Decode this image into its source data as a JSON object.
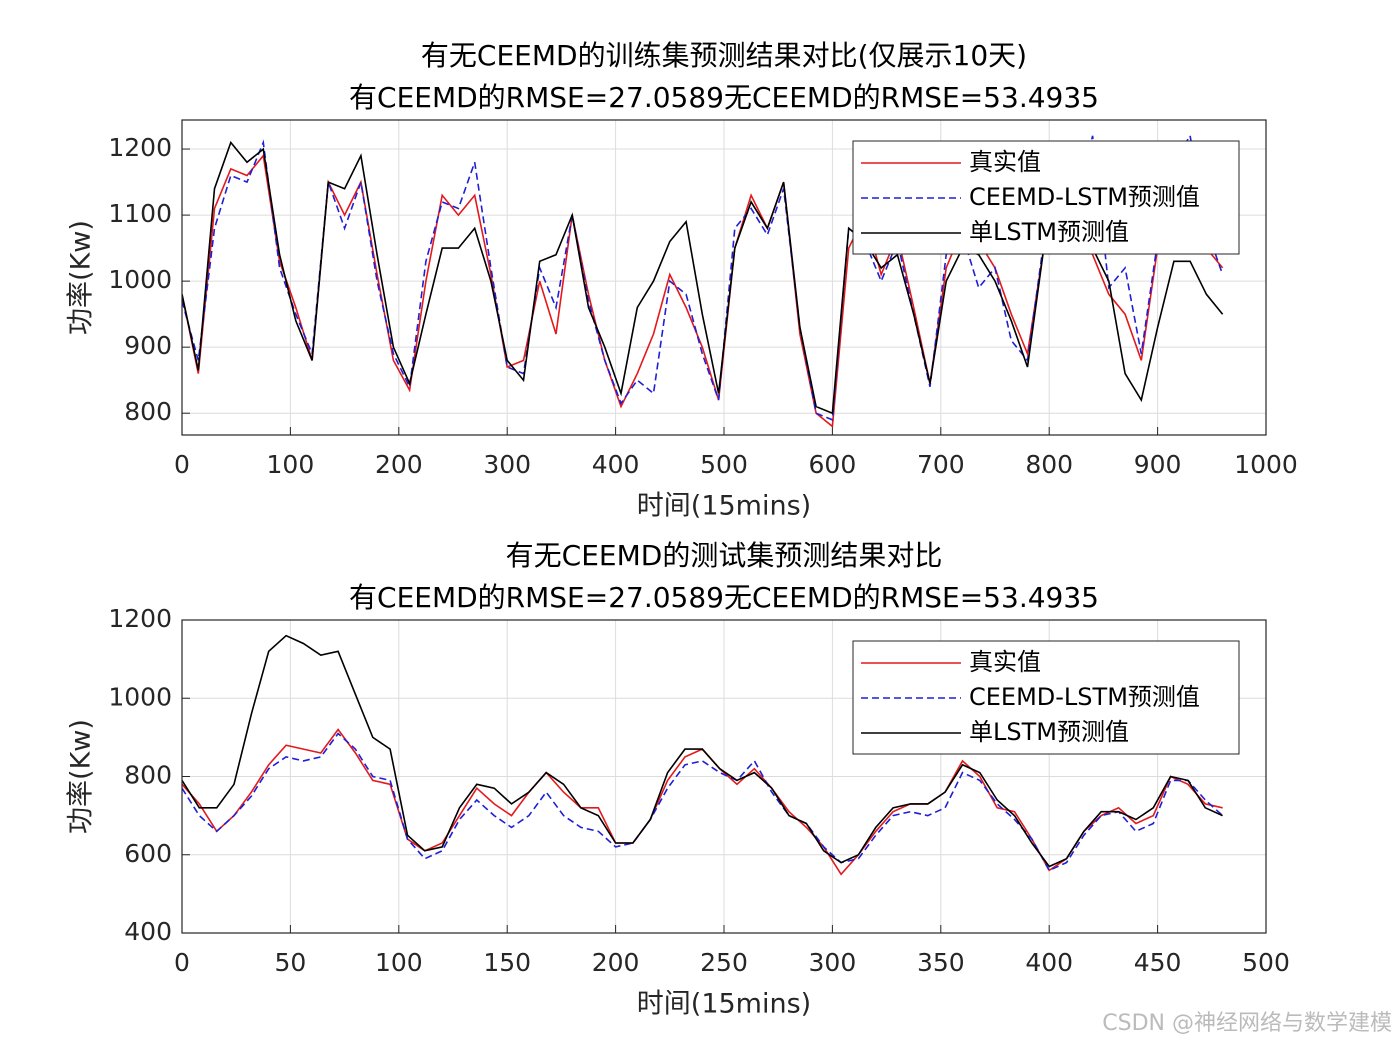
{
  "chart_data": [
    {
      "type": "line",
      "title": "有无CEEMD的训练集预测结果对比(仅展示10天)",
      "subtitle": "有CEEMD的RMSE=27.0589无CEEMD的RMSE=53.4935",
      "xlabel": "时间(15mins)",
      "ylabel": "功率(Kw)",
      "x": [
        0,
        15,
        30,
        45,
        60,
        75,
        90,
        105,
        120,
        135,
        150,
        165,
        180,
        195,
        210,
        225,
        240,
        255,
        270,
        285,
        300,
        315,
        330,
        345,
        360,
        375,
        390,
        405,
        420,
        435,
        450,
        465,
        480,
        495,
        510,
        525,
        540,
        555,
        570,
        585,
        600,
        615,
        630,
        645,
        660,
        675,
        690,
        705,
        720,
        735,
        750,
        765,
        780,
        795,
        810,
        825,
        840,
        855,
        870,
        885,
        900,
        915,
        930,
        945,
        960
      ],
      "series": [
        {
          "name": "真实值",
          "color": "#e31a1c",
          "dash": "solid",
          "values": [
            980,
            860,
            1110,
            1170,
            1160,
            1190,
            1030,
            960,
            880,
            1150,
            1100,
            1150,
            1010,
            880,
            835,
            1000,
            1130,
            1100,
            1130,
            1010,
            870,
            880,
            1000,
            920,
            1100,
            980,
            880,
            810,
            860,
            920,
            1010,
            960,
            900,
            820,
            1050,
            1130,
            1080,
            1150,
            920,
            800,
            780,
            1050,
            1100,
            1010,
            1070,
            960,
            845,
            1020,
            1080,
            1060,
            1020,
            950,
            890,
            1050,
            1100,
            1090,
            1040,
            980,
            950,
            880,
            1050,
            1080,
            1100,
            1050,
            1020
          ]
        },
        {
          "name": "CEEMD-LSTM预测值",
          "color": "#1f1fd6",
          "dash": "dashed",
          "values": [
            970,
            880,
            1080,
            1160,
            1150,
            1210,
            1020,
            950,
            890,
            1150,
            1080,
            1150,
            1000,
            890,
            840,
            1030,
            1120,
            1110,
            1180,
            1020,
            870,
            860,
            1020,
            960,
            1100,
            970,
            880,
            815,
            850,
            830,
            1000,
            980,
            890,
            820,
            1080,
            1110,
            1070,
            1140,
            930,
            800,
            790,
            1080,
            1060,
            1000,
            1060,
            950,
            840,
            1040,
            1070,
            990,
            1020,
            910,
            880,
            1060,
            1120,
            1110,
            1220,
            990,
            1020,
            890,
            1060,
            1180,
            1220,
            1080,
            1010
          ]
        },
        {
          "name": "单LSTM预测值",
          "color": "#000000",
          "dash": "solid",
          "values": [
            980,
            865,
            1140,
            1210,
            1180,
            1200,
            1040,
            940,
            880,
            1150,
            1140,
            1190,
            1040,
            900,
            845,
            950,
            1050,
            1050,
            1080,
            1000,
            880,
            850,
            1030,
            1040,
            1100,
            960,
            900,
            830,
            960,
            1000,
            1060,
            1090,
            950,
            830,
            1050,
            1120,
            1080,
            1150,
            930,
            810,
            800,
            1080,
            1060,
            1020,
            1040,
            950,
            845,
            1000,
            1050,
            1040,
            1000,
            940,
            870,
            1050,
            1110,
            1100,
            1050,
            1000,
            860,
            820,
            930,
            1030,
            1030,
            980,
            950
          ]
        }
      ],
      "xlim": [
        0,
        1000
      ],
      "ylim": [
        767,
        1244
      ],
      "xticks": [
        0,
        100,
        200,
        300,
        400,
        500,
        600,
        700,
        800,
        900,
        1000
      ],
      "yticks": [
        800,
        900,
        1000,
        1100,
        1200
      ],
      "grid": true,
      "legend": "northeast"
    },
    {
      "type": "line",
      "title": "有无CEEMD的测试集预测结果对比",
      "subtitle": "有CEEMD的RMSE=27.0589无CEEMD的RMSE=53.4935",
      "xlabel": "时间(15mins)",
      "ylabel": "功率(Kw)",
      "x": [
        0,
        8,
        16,
        24,
        32,
        40,
        48,
        56,
        64,
        72,
        80,
        88,
        96,
        104,
        112,
        120,
        128,
        136,
        144,
        152,
        160,
        168,
        176,
        184,
        192,
        200,
        208,
        216,
        224,
        232,
        240,
        248,
        256,
        264,
        272,
        280,
        288,
        296,
        304,
        312,
        320,
        328,
        336,
        344,
        352,
        360,
        368,
        376,
        384,
        392,
        400,
        408,
        416,
        424,
        432,
        440,
        448,
        456,
        464,
        472,
        480
      ],
      "series": [
        {
          "name": "真实值",
          "color": "#e31a1c",
          "dash": "solid",
          "values": [
            780,
            730,
            660,
            700,
            760,
            830,
            880,
            870,
            860,
            920,
            860,
            790,
            780,
            640,
            610,
            630,
            700,
            770,
            730,
            700,
            760,
            810,
            760,
            720,
            720,
            630,
            630,
            690,
            790,
            850,
            870,
            820,
            780,
            820,
            770,
            710,
            670,
            620,
            550,
            600,
            660,
            710,
            730,
            730,
            760,
            840,
            800,
            720,
            710,
            640,
            560,
            590,
            660,
            700,
            720,
            680,
            700,
            800,
            780,
            730,
            720
          ]
        },
        {
          "name": "CEEMD-LSTM预测值",
          "color": "#1f1fd6",
          "dash": "dashed",
          "values": [
            770,
            700,
            660,
            700,
            750,
            820,
            850,
            840,
            850,
            910,
            870,
            800,
            790,
            640,
            590,
            610,
            690,
            740,
            700,
            670,
            700,
            760,
            700,
            670,
            660,
            620,
            630,
            690,
            770,
            830,
            840,
            810,
            790,
            840,
            760,
            700,
            680,
            620,
            580,
            590,
            650,
            700,
            710,
            700,
            720,
            810,
            790,
            730,
            690,
            640,
            560,
            580,
            650,
            700,
            710,
            660,
            680,
            790,
            790,
            740,
            700
          ]
        },
        {
          "name": "单LSTM预测值",
          "color": "#000000",
          "dash": "solid",
          "values": [
            790,
            720,
            720,
            780,
            960,
            1120,
            1160,
            1140,
            1110,
            1120,
            1010,
            900,
            870,
            650,
            610,
            620,
            720,
            780,
            770,
            730,
            760,
            810,
            780,
            720,
            700,
            630,
            630,
            690,
            810,
            870,
            870,
            820,
            790,
            810,
            770,
            700,
            680,
            610,
            580,
            600,
            670,
            720,
            730,
            730,
            760,
            830,
            810,
            740,
            700,
            630,
            570,
            590,
            660,
            710,
            710,
            690,
            720,
            800,
            790,
            720,
            700
          ]
        }
      ],
      "xlim": [
        0,
        500
      ],
      "ylim": [
        400,
        1200
      ],
      "xticks": [
        0,
        50,
        100,
        150,
        200,
        250,
        300,
        350,
        400,
        450,
        500
      ],
      "yticks": [
        400,
        600,
        800,
        1000,
        1200
      ],
      "grid": true,
      "legend": "northeast"
    }
  ],
  "watermark": "CSDN @神经网络与数学建模"
}
